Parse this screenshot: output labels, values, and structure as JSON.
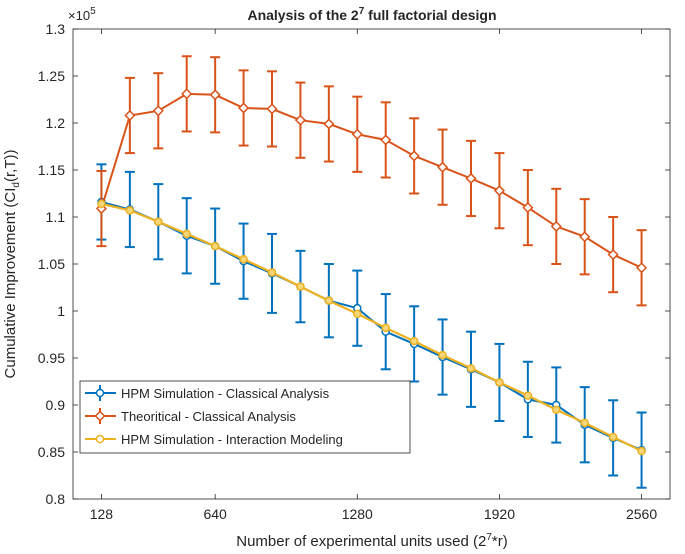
{
  "chart_data": {
    "type": "line",
    "title": "Analysis of the 2",
    "title_sup": "7",
    "title_rest": " full factorial design",
    "xlabel": "Number of experimental units used (2",
    "xlabel_sup": "7",
    "xlabel_rest": "*r)",
    "ylabel": "Cumulative Improvement (CI",
    "ylabel_sub": "d",
    "ylabel_rest": "(r,T))",
    "y_multiplier_base": "×10",
    "y_multiplier_exp": "5",
    "xlim": [
      0,
      2688
    ],
    "ylim": [
      0.8,
      1.3
    ],
    "y_scale": 100000,
    "xticks": [
      128,
      640,
      1280,
      1920,
      2560
    ],
    "yticks": [
      0.8,
      0.85,
      0.9,
      0.95,
      1,
      1.05,
      1.1,
      1.15,
      1.2,
      1.25,
      1.3
    ],
    "ytick_labels": [
      "0.8",
      "0.85",
      "0.9",
      "0.95",
      "1",
      "1.05",
      "1.1",
      "1.15",
      "1.2",
      "1.25",
      "1.3"
    ],
    "grid": false,
    "legend_position": "bottom-left",
    "x": [
      128,
      256,
      384,
      512,
      640,
      768,
      896,
      1024,
      1152,
      1280,
      1408,
      1536,
      1664,
      1792,
      1920,
      2048,
      2176,
      2304,
      2432,
      2560
    ],
    "series": [
      {
        "name": "HPM Simulation - Classical Analysis",
        "color": "#0072BD",
        "marker": "circle",
        "values": [
          1.116,
          1.108,
          1.095,
          1.08,
          1.069,
          1.053,
          1.04,
          1.026,
          1.011,
          1.003,
          0.978,
          0.965,
          0.951,
          0.938,
          0.924,
          0.906,
          0.9,
          0.879,
          0.865,
          0.852
        ],
        "error": [
          0.04,
          0.04,
          0.04,
          0.04,
          0.04,
          0.04,
          0.042,
          0.038,
          0.039,
          0.04,
          0.04,
          0.04,
          0.04,
          0.04,
          0.041,
          0.04,
          0.04,
          0.04,
          0.04,
          0.04
        ]
      },
      {
        "name": "Theoritical - Classical Analysis",
        "color": "#D95319",
        "marker": "diamond",
        "values": [
          1.109,
          1.208,
          1.213,
          1.231,
          1.23,
          1.216,
          1.215,
          1.203,
          1.199,
          1.188,
          1.182,
          1.165,
          1.153,
          1.141,
          1.128,
          1.11,
          1.09,
          1.079,
          1.06,
          1.046
        ],
        "error": [
          0.04,
          0.04,
          0.04,
          0.04,
          0.04,
          0.04,
          0.04,
          0.04,
          0.04,
          0.04,
          0.04,
          0.04,
          0.04,
          0.04,
          0.04,
          0.04,
          0.04,
          0.04,
          0.04,
          0.04
        ]
      },
      {
        "name": "HPM Simulation - Interaction Modeling",
        "color": "#EDB120",
        "marker": "circle",
        "values": [
          1.114,
          1.107,
          1.095,
          1.082,
          1.069,
          1.055,
          1.041,
          1.026,
          1.011,
          0.997,
          0.982,
          0.968,
          0.953,
          0.939,
          0.924,
          0.91,
          0.895,
          0.881,
          0.866,
          0.851
        ]
      }
    ]
  }
}
